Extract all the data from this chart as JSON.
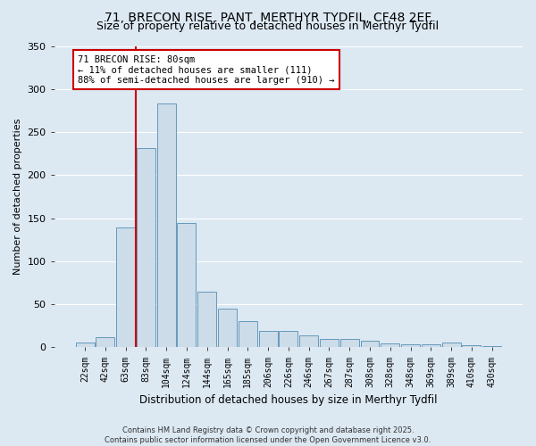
{
  "title1": "71, BRECON RISE, PANT, MERTHYR TYDFIL, CF48 2EF",
  "title2": "Size of property relative to detached houses in Merthyr Tydfil",
  "xlabel": "Distribution of detached houses by size in Merthyr Tydfil",
  "ylabel": "Number of detached properties",
  "footer": "Contains HM Land Registry data © Crown copyright and database right 2025.\nContains public sector information licensed under the Open Government Licence v3.0.",
  "bins": [
    "22sqm",
    "42sqm",
    "63sqm",
    "83sqm",
    "104sqm",
    "124sqm",
    "144sqm",
    "165sqm",
    "185sqm",
    "206sqm",
    "226sqm",
    "246sqm",
    "267sqm",
    "287sqm",
    "308sqm",
    "328sqm",
    "348sqm",
    "369sqm",
    "389sqm",
    "410sqm",
    "430sqm"
  ],
  "values": [
    6,
    12,
    139,
    231,
    283,
    144,
    65,
    45,
    30,
    19,
    19,
    14,
    10,
    10,
    8,
    5,
    4,
    4,
    6,
    2,
    1
  ],
  "bar_color": "#ccdce8",
  "bar_edge_color": "#6699bb",
  "vline_color": "#cc0000",
  "vline_pos": 2.5,
  "annotation_text": "71 BRECON RISE: 80sqm\n← 11% of detached houses are smaller (111)\n88% of semi-detached houses are larger (910) →",
  "annotation_box_color": "white",
  "annotation_box_edge": "#cc0000",
  "bg_color": "#dce8f2",
  "plot_bg_color": "#dce8f2",
  "grid_color": "white",
  "ylim": [
    0,
    350
  ],
  "yticks": [
    0,
    50,
    100,
    150,
    200,
    250,
    300,
    350
  ],
  "title_fontsize": 10,
  "subtitle_fontsize": 9,
  "annotation_fontsize": 7.5,
  "ylabel_fontsize": 8,
  "xlabel_fontsize": 8.5,
  "tick_fontsize": 7
}
